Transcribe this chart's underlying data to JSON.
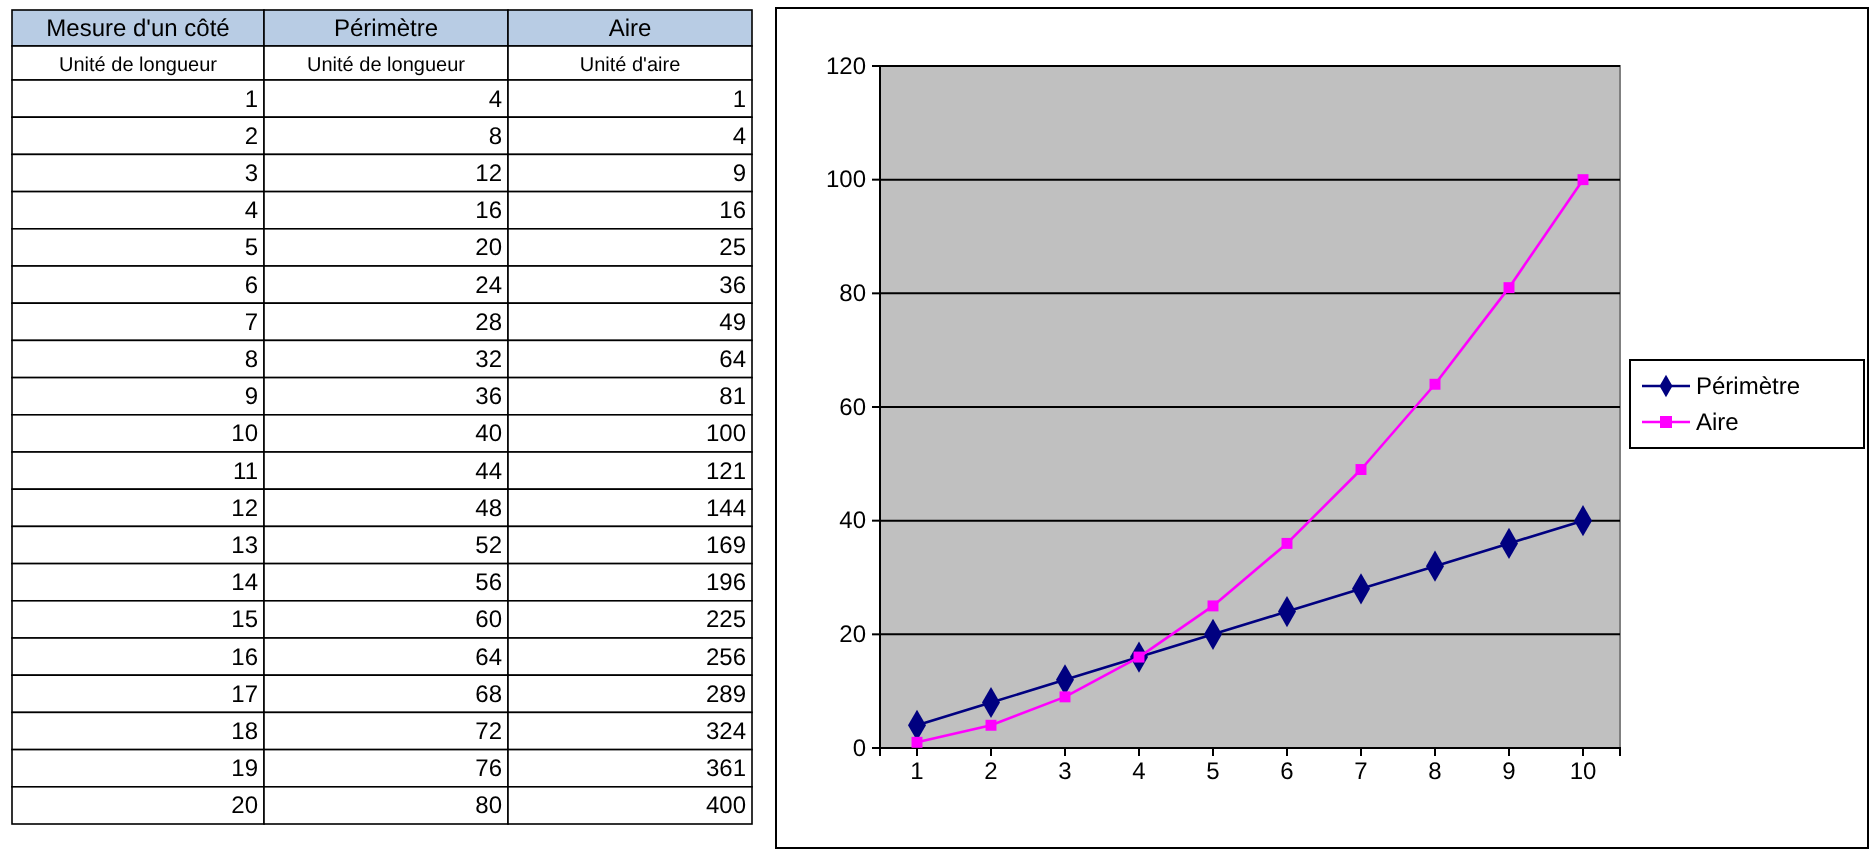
{
  "chart_data": [
    {
      "type": "other",
      "annotations": [
        "Mesure d'un côté",
        "Périmètre",
        "Aire",
        "Unité de longueur",
        "Unité de longueur",
        "Unité d'aire",
        "1",
        "4",
        "1",
        "2",
        "8",
        "4",
        "3",
        "12",
        "9",
        "4",
        "16",
        "16",
        "5",
        "20",
        "25",
        "6",
        "24",
        "36",
        "7",
        "28",
        "49",
        "8",
        "32",
        "64",
        "9",
        "36",
        "81",
        "10",
        "40",
        "100",
        "11",
        "44",
        "121",
        "12",
        "48",
        "144",
        "13",
        "52",
        "169",
        "14",
        "56",
        "196",
        "15",
        "60",
        "225",
        "16",
        "64",
        "256",
        "17",
        "68",
        "289",
        "18",
        "72",
        "324",
        "19",
        "76",
        "361",
        "20",
        "80",
        "400"
      ]
    },
    {
      "type": "line",
      "categories": [
        "1",
        "2",
        "3",
        "4",
        "5",
        "6",
        "7",
        "8",
        "9",
        "10"
      ],
      "series": [
        {
          "name": "Périmètre",
          "color": "#000080",
          "marker": "diamond",
          "values": [
            4,
            8,
            12,
            16,
            20,
            24,
            28,
            32,
            36,
            40
          ]
        },
        {
          "name": "Aire",
          "color": "#ff00ff",
          "marker": "square",
          "values": [
            1,
            4,
            9,
            16,
            25,
            36,
            49,
            64,
            81,
            100
          ]
        }
      ],
      "ylim": [
        0,
        120
      ],
      "yticks": [
        0,
        20,
        40,
        60,
        80,
        100,
        120
      ],
      "grid": "y",
      "legend": "right"
    }
  ]
}
